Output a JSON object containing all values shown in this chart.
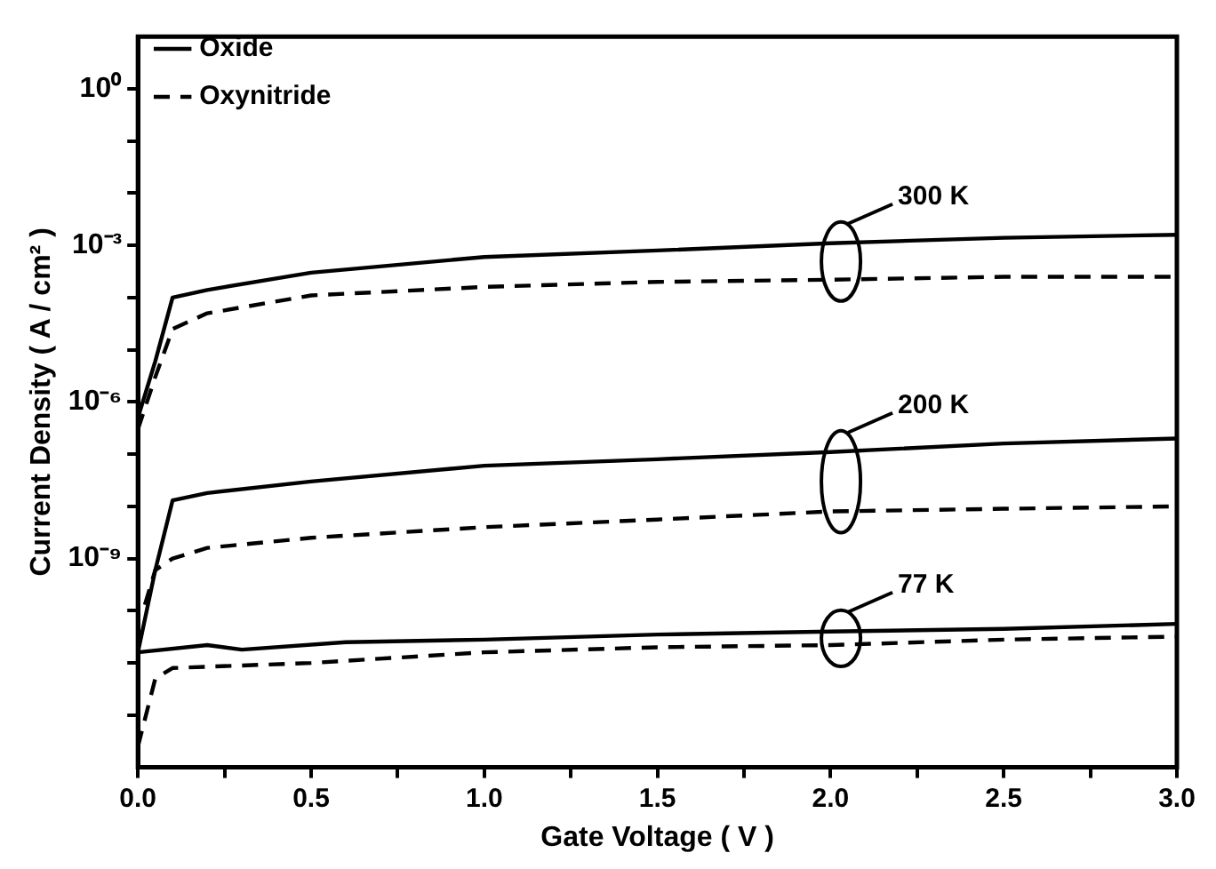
{
  "chart_data": {
    "type": "line",
    "xlabel": "Gate Voltage ( V )",
    "ylabel": "Current Density ( A / cm² )",
    "log": "y",
    "grid": false,
    "legend": "top left",
    "marker": "none",
    "xlim": [
      0,
      3
    ],
    "xticks": [
      {
        "value": 0,
        "label": "0.0"
      },
      {
        "value": 0.25,
        "label": null
      },
      {
        "value": 0.5,
        "label": "0.5"
      },
      {
        "value": 0.75,
        "label": null
      },
      {
        "value": 1,
        "label": "1.0"
      },
      {
        "value": 1.25,
        "label": null
      },
      {
        "value": 1.5,
        "label": "1.5"
      },
      {
        "value": 1.75,
        "label": null
      },
      {
        "value": 2,
        "label": "2.0"
      },
      {
        "value": 2.25,
        "label": null
      },
      {
        "value": 2.5,
        "label": "2.5"
      },
      {
        "value": 2.75,
        "label": null
      },
      {
        "value": 3,
        "label": "3.0"
      }
    ],
    "ylim": [
      1e-13,
      10
    ],
    "yticks": [
      {
        "value": 1e-12,
        "label": null
      },
      {
        "value": 1e-11,
        "label": null
      },
      {
        "value": 1e-10,
        "label": null
      },
      {
        "value": 1e-09,
        "label": "10⁻⁹"
      },
      {
        "value": 1e-08,
        "label": null
      },
      {
        "value": 1e-07,
        "label": null
      },
      {
        "value": 1e-06,
        "label": "10⁻⁶"
      },
      {
        "value": 1e-05,
        "label": null
      },
      {
        "value": 0.0001,
        "label": null
      },
      {
        "value": 0.001,
        "label": "10⁻³"
      },
      {
        "value": 0.01,
        "label": null
      },
      {
        "value": 0.1,
        "label": null
      },
      {
        "value": 1,
        "label": "10⁰"
      }
    ],
    "series": [
      {
        "name": "Oxide",
        "color": "#000000",
        "line_style": "solid",
        "x": [
          0,
          0.05,
          0.1,
          0.2,
          0.5,
          1.0,
          1.5,
          2.0,
          2.5,
          3.0
        ],
        "values": [
          5e-07,
          6e-06,
          0.0001,
          0.00014,
          0.0003,
          0.0006,
          0.0008,
          0.0011,
          0.0014,
          0.0016
        ]
      },
      {
        "name": "Oxynitride",
        "color": "#000000",
        "line_style": "dashed",
        "x": [
          0,
          0.05,
          0.1,
          0.2,
          0.5,
          1.0,
          1.5,
          2.0,
          2.5,
          3.0
        ],
        "values": [
          3e-07,
          3e-06,
          2.5e-05,
          5e-05,
          0.00011,
          0.00016,
          0.0002,
          0.00022,
          0.00025,
          0.00025
        ]
      },
      {
        "color": "#000000",
        "line_style": "solid",
        "x": [
          0,
          0.05,
          0.1,
          0.2,
          0.5,
          1.0,
          1.5,
          2.0,
          2.5,
          3.0
        ],
        "values": [
          1.6e-11,
          6e-10,
          1.3e-08,
          1.8e-08,
          3e-08,
          6e-08,
          8e-08,
          1.1e-07,
          1.6e-07,
          2e-07
        ]
      },
      {
        "color": "#000000",
        "line_style": "dashed",
        "x": [
          0.02,
          0.05,
          0.1,
          0.2,
          0.5,
          1.0,
          1.5,
          2.0,
          2.5,
          3.0
        ],
        "values": [
          1.3e-10,
          6e-10,
          1e-09,
          1.6e-09,
          2.5e-09,
          4e-09,
          5.6e-09,
          8e-09,
          9e-09,
          1e-08
        ]
      },
      {
        "color": "#000000",
        "line_style": "solid",
        "x": [
          0,
          0.2,
          0.3,
          0.6,
          1.0,
          1.5,
          2.0,
          2.5,
          3.0
        ],
        "values": [
          1.6e-11,
          2.2e-11,
          1.8e-11,
          2.5e-11,
          2.8e-11,
          3.5e-11,
          4e-11,
          4.5e-11,
          5.6e-11
        ]
      },
      {
        "color": "#000000",
        "line_style": "dashed",
        "x": [
          0,
          0.05,
          0.1,
          0.5,
          1.0,
          1.5,
          2.0,
          2.5,
          3.0
        ],
        "values": [
          2.5e-13,
          5e-12,
          8e-12,
          1e-11,
          1.6e-11,
          2e-11,
          2.2e-11,
          2.8e-11,
          3.2e-11
        ]
      }
    ],
    "annotations": [
      "300 K",
      "200 K",
      "77 K"
    ]
  }
}
